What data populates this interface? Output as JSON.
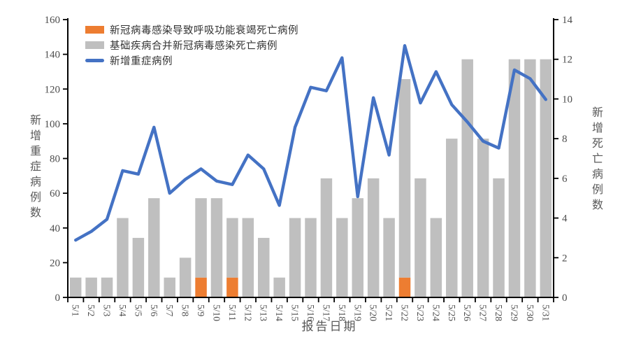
{
  "chart_data": {
    "type": "combo-bar-line",
    "title": "",
    "categories": [
      "5/1",
      "5/2",
      "5/3",
      "5/4",
      "5/5",
      "5/6",
      "5/7",
      "5/8",
      "5/9",
      "5/10",
      "5/11",
      "5/12",
      "5/13",
      "5/14",
      "5/15",
      "5/16",
      "5/17",
      "5/18",
      "5/19",
      "5/20",
      "5/21",
      "5/22",
      "5/23",
      "5/24",
      "5/25",
      "5/26",
      "5/27",
      "5/28",
      "5/29",
      "5/30",
      "5/31"
    ],
    "stacked_bars": true,
    "grid": false,
    "legend_position": "top-left",
    "series": [
      {
        "name": "新冠病毒感染导致呼吸功能衰竭死亡病例",
        "type": "bar",
        "axis": "right",
        "color": "#ED7D31",
        "values": [
          0,
          0,
          0,
          0,
          0,
          0,
          0,
          0,
          1,
          0,
          1,
          0,
          0,
          0,
          0,
          0,
          0,
          0,
          0,
          0,
          0,
          1,
          0,
          0,
          0,
          0,
          0,
          0,
          0,
          0,
          0
        ]
      },
      {
        "name": "基础疾病合并新冠病毒感染死亡病例",
        "type": "bar",
        "axis": "right",
        "color": "#BFBFBF",
        "values": [
          1,
          1,
          1,
          4,
          3,
          5,
          1,
          2,
          4,
          5,
          3,
          4,
          3,
          1,
          4,
          4,
          6,
          4,
          5,
          6,
          4,
          10,
          6,
          4,
          8,
          12,
          8,
          6,
          12,
          12,
          12
        ]
      },
      {
        "name": "新增重症病例",
        "type": "line",
        "axis": "left",
        "color": "#4472C4",
        "values": [
          33,
          38,
          45,
          73,
          71,
          98,
          60,
          68,
          74,
          67,
          65,
          82,
          74,
          53,
          98,
          121,
          119,
          138,
          58,
          115,
          82,
          145,
          112,
          130,
          111,
          101,
          90,
          86,
          131,
          126,
          114
        ]
      }
    ],
    "left_axis": {
      "title": "新增重症病例数",
      "min": 0,
      "max": 160,
      "step": 20
    },
    "right_axis": {
      "title": "新增死亡病例数",
      "min": 0,
      "max": 14,
      "step": 2
    },
    "x_axis": {
      "title": "报告日期"
    },
    "style": {
      "axis_color": "#000000",
      "tick_label_color": "#4d4d4d",
      "background": "#ffffff"
    }
  }
}
